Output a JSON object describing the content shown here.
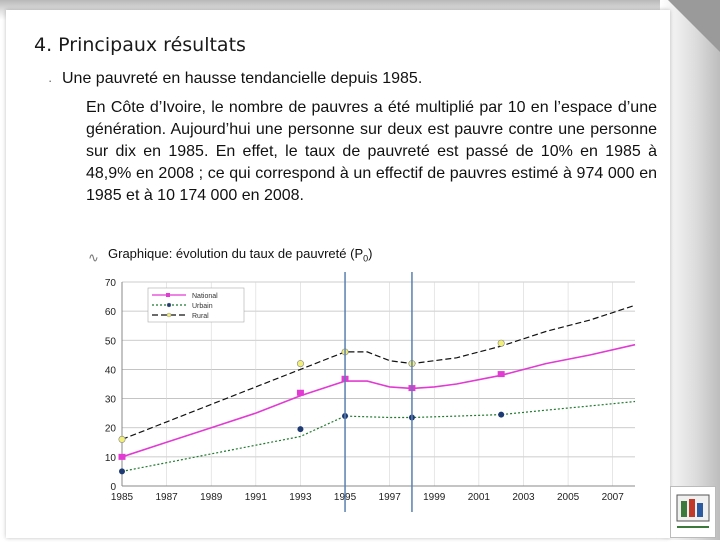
{
  "slide": {
    "title": "4. Principaux résultats",
    "bullet": "Une pauvreté en hausse tendancielle depuis 1985.",
    "paragraph": "En Côte d’Ivoire, le nombre de pauvres a été multiplié par 10 en l’espace d’une génération. Aujourd’hui une personne sur deux est pauvre contre une personne sur dix en 1985. En effet, le taux de pauvreté est passé de 10% en 1985 à 48,9% en 2008 ; ce qui correspond à un effectif de pauvres estimé à 974 000 en 1985 et à 10 174 000 en 2008.",
    "chart_caption": "Graphique: évolution du taux de pauvreté (P",
    "chart_caption_sub": "0",
    "chart_caption_end": ")"
  },
  "colors": {
    "national": "#e23bd3",
    "urbain": "#1f7a2e",
    "rural": "#111111",
    "vline": "#5b7fb0",
    "marker_rural": "#f2ee7a",
    "marker_national": "#e23bd3",
    "marker_urbain": "#1d3a73"
  },
  "chart_data": {
    "type": "line",
    "xlim": [
      1985,
      2008
    ],
    "ylim": [
      0,
      70
    ],
    "xticks": [
      "1985",
      "1987",
      "1989",
      "1991",
      "1993",
      "1995",
      "1997",
      "1999",
      "2001",
      "2003",
      "2005",
      "2007"
    ],
    "yticks": [
      "0",
      "10",
      "20",
      "30",
      "40",
      "50",
      "60",
      "70"
    ],
    "grid": true,
    "legend": "top-left",
    "vertical_lines": [
      1995,
      1998
    ],
    "series": [
      {
        "name": "National",
        "color_key": "national",
        "dash": "none",
        "x": [
          1985,
          1987,
          1989,
          1991,
          1993,
          1995,
          1996,
          1997,
          1998,
          1999,
          2000,
          2002,
          2004,
          2006,
          2008
        ],
        "y": [
          10,
          15,
          20,
          25,
          31,
          36,
          36,
          34,
          33.5,
          34,
          35,
          38,
          42,
          45,
          48.5
        ],
        "markers_x": [
          1985,
          1993,
          1995,
          1998,
          2002
        ],
        "markers_y": [
          10,
          32,
          36.8,
          33.6,
          38.4
        ]
      },
      {
        "name": "Urbain",
        "color_key": "urbain",
        "dash": "2,2",
        "x": [
          1985,
          1987,
          1989,
          1991,
          1993,
          1995,
          1997,
          1998,
          2000,
          2002,
          2004,
          2006,
          2008
        ],
        "y": [
          5,
          8,
          11,
          14,
          17,
          24,
          23.5,
          23.5,
          24,
          24.5,
          26,
          27.5,
          29
        ],
        "markers_x": [
          1985,
          1993,
          1995,
          1998,
          2002
        ],
        "markers_y": [
          5,
          19.5,
          24,
          23.5,
          24.5
        ]
      },
      {
        "name": "Rural",
        "color_key": "rural",
        "dash": "6,3",
        "x": [
          1985,
          1987,
          1989,
          1991,
          1993,
          1995,
          1996,
          1997,
          1998,
          2000,
          2002,
          2004,
          2006,
          2008
        ],
        "y": [
          16,
          22,
          28,
          34,
          40,
          46,
          46,
          43,
          42,
          44,
          48,
          53,
          57,
          62
        ],
        "markers_x": [
          1985,
          1993,
          1995,
          1998,
          2002
        ],
        "markers_y": [
          16,
          42,
          46,
          42,
          49
        ]
      }
    ]
  }
}
